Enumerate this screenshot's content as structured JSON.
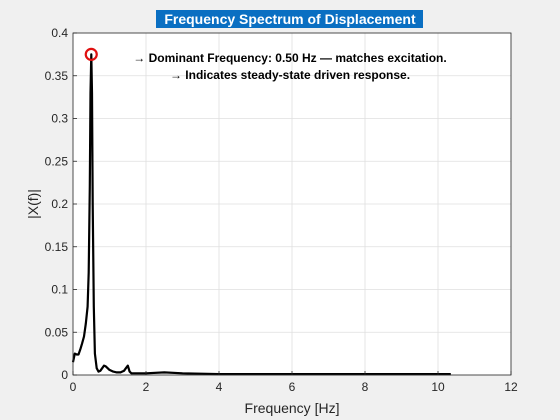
{
  "chart_data": {
    "type": "line",
    "title": "Frequency Spectrum of Displacement",
    "xlabel": "Frequency [Hz]",
    "ylabel": "|X(f)|",
    "xlim": [
      0,
      12
    ],
    "ylim": [
      0,
      0.4
    ],
    "xticks": [
      "0",
      "2",
      "4",
      "6",
      "8",
      "10",
      "12"
    ],
    "yticks": [
      "0",
      "0.05",
      "0.1",
      "0.15",
      "0.2",
      "0.25",
      "0.3",
      "0.35",
      "0.4"
    ],
    "grid": true,
    "annotations": [
      "→ Dominant Frequency: 0.50 Hz — matches excitation.",
      "→ Indicates steady-state driven response."
    ],
    "peak": {
      "x": 0.5,
      "y": 0.375
    },
    "series": [
      {
        "color": "#000000",
        "x": [
          0,
          0.05,
          0.1,
          0.15,
          0.2,
          0.25,
          0.3,
          0.35,
          0.4,
          0.43,
          0.46,
          0.48,
          0.5,
          0.52,
          0.54,
          0.57,
          0.6,
          0.65,
          0.7,
          0.75,
          0.8,
          0.85,
          0.9,
          1.0,
          1.1,
          1.2,
          1.3,
          1.4,
          1.45,
          1.5,
          1.55,
          1.6,
          1.8,
          2.0,
          2.5,
          3.0,
          4.0,
          5.0,
          6.0,
          7.0,
          8.0,
          9.0,
          10.0,
          10.35
        ],
        "y": [
          0.015,
          0.025,
          0.024,
          0.024,
          0.03,
          0.037,
          0.045,
          0.06,
          0.08,
          0.12,
          0.22,
          0.33,
          0.375,
          0.33,
          0.2,
          0.08,
          0.025,
          0.008,
          0.004,
          0.005,
          0.008,
          0.011,
          0.01,
          0.006,
          0.004,
          0.003,
          0.003,
          0.005,
          0.008,
          0.011,
          0.004,
          0.002,
          0.002,
          0.002,
          0.003,
          0.002,
          0.001,
          0.001,
          0.001,
          0.001,
          0.001,
          0.001,
          0.001,
          0.001
        ]
      }
    ]
  }
}
